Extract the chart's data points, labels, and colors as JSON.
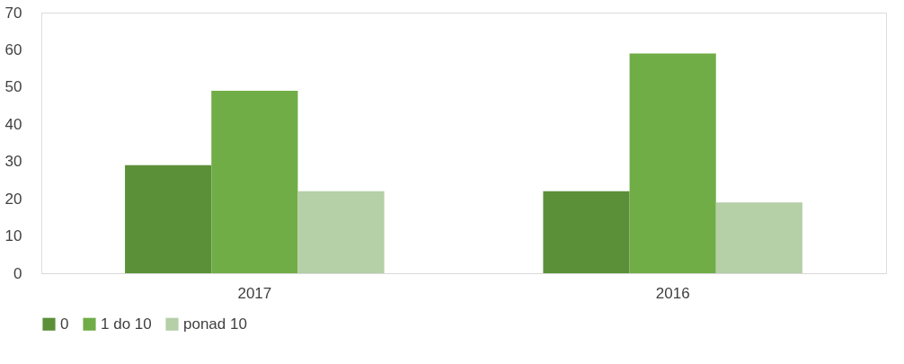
{
  "chart_data": {
    "type": "bar",
    "categories": [
      "2017",
      "2016"
    ],
    "series": [
      {
        "name": "0",
        "color": "#5b9039",
        "values": [
          29,
          22
        ]
      },
      {
        "name": "1 do 10",
        "color": "#70ad47",
        "values": [
          49,
          59
        ]
      },
      {
        "name": "ponad 10",
        "color": "#b5cfa7",
        "values": [
          22,
          19
        ]
      }
    ],
    "ylim": [
      0,
      70
    ],
    "yticks": [
      0,
      10,
      20,
      30,
      40,
      50,
      60,
      70
    ],
    "grid": false,
    "legend": "bottom"
  }
}
